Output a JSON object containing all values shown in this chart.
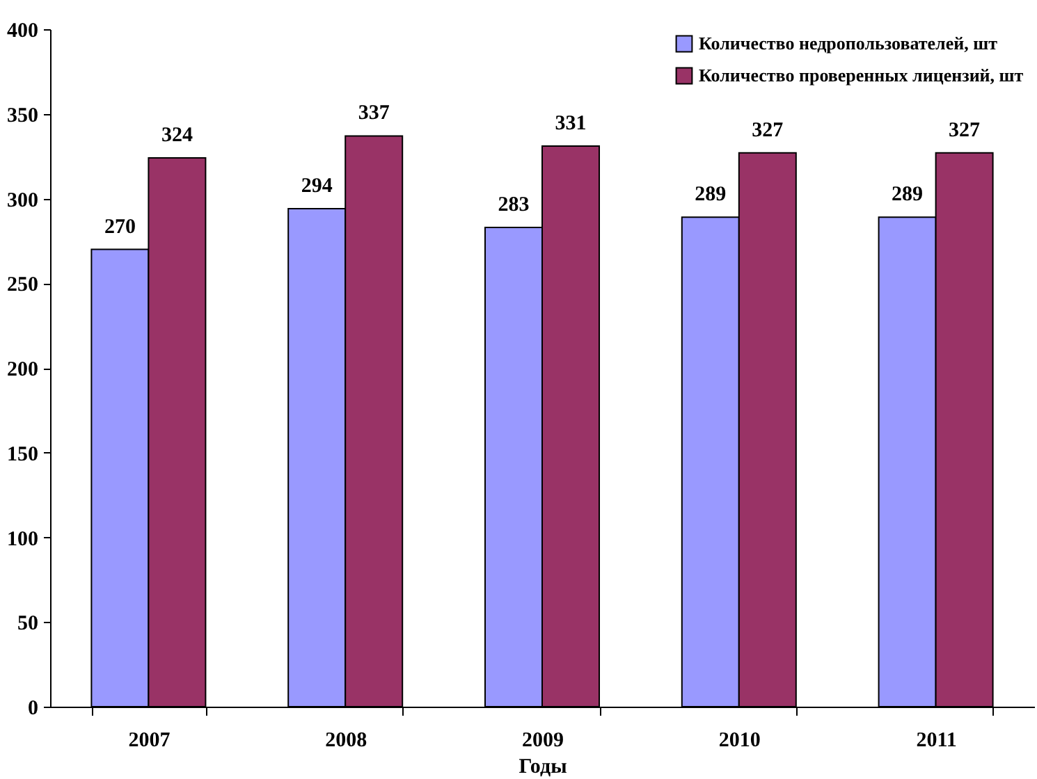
{
  "chart_data": {
    "type": "bar",
    "xlabel": "Годы",
    "categories": [
      "2007",
      "2008",
      "2009",
      "2010",
      "2011"
    ],
    "series": [
      {
        "name": "Количество недропользователей, шт",
        "color": "#9999ff",
        "values": [
          270,
          294,
          283,
          289,
          289
        ]
      },
      {
        "name": "Количество проверенных  лицензий, шт",
        "color": "#993366",
        "values": [
          324,
          337,
          331,
          327,
          327
        ]
      }
    ],
    "ylim": [
      0,
      400
    ],
    "yticks": [
      0,
      50,
      100,
      150,
      200,
      250,
      300,
      350,
      400
    ],
    "data_labels": true,
    "legend": "top right"
  }
}
